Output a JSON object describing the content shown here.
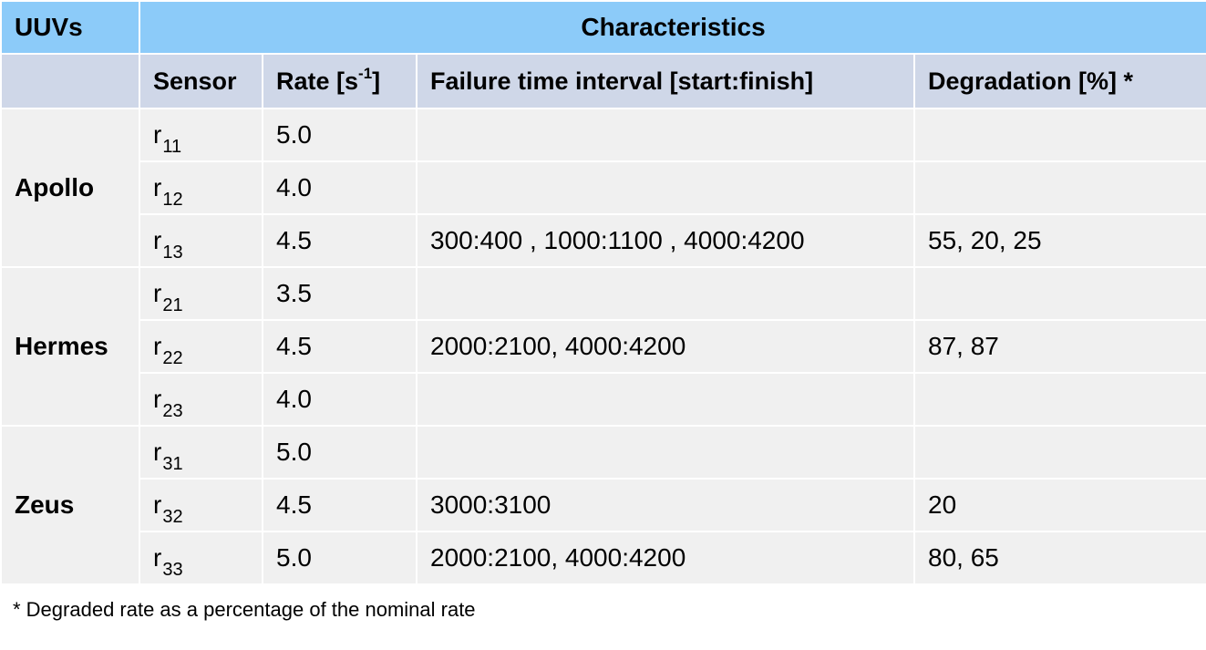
{
  "table": {
    "header": {
      "uuvs": "UUVs",
      "characteristics": "Characteristics"
    },
    "columns": {
      "sensor": "Sensor",
      "rate": {
        "text": "Rate [s",
        "sup": "-1",
        "close": "]"
      },
      "failure": "Failure time interval [start:finish]",
      "degradation": "Degradation [%] *"
    },
    "groups": [
      {
        "name": "Apollo",
        "rows": [
          {
            "sensor": {
              "base": "r",
              "sub": "11"
            },
            "rate": "5.0"
          },
          {
            "sensor": {
              "base": "r",
              "sub": "12"
            },
            "rate": "4.0"
          },
          {
            "sensor": {
              "base": "r",
              "sub": "13"
            },
            "rate": "4.5",
            "failure": "300:400 , 1000:1100 , 4000:4200",
            "degradation": "55, 20, 25"
          }
        ]
      },
      {
        "name": "Hermes",
        "rows": [
          {
            "sensor": {
              "base": "r",
              "sub": "21"
            },
            "rate": "3.5"
          },
          {
            "sensor": {
              "base": "r",
              "sub": "22"
            },
            "rate": "4.5",
            "failure": "2000:2100, 4000:4200",
            "degradation": "87, 87"
          },
          {
            "sensor": {
              "base": "r",
              "sub": "23"
            },
            "rate": "4.0"
          }
        ]
      },
      {
        "name": "Zeus",
        "rows": [
          {
            "sensor": {
              "base": "r",
              "sub": "31"
            },
            "rate": "5.0"
          },
          {
            "sensor": {
              "base": "r",
              "sub": "32"
            },
            "rate": "4.5",
            "failure": "3000:3100",
            "degradation": "20"
          },
          {
            "sensor": {
              "base": "r",
              "sub": "33"
            },
            "rate": "5.0",
            "failure": "2000:2100, 4000:4200",
            "degradation": "80, 65"
          }
        ]
      }
    ]
  },
  "footnote": "* Degraded rate as a percentage of the nominal rate"
}
